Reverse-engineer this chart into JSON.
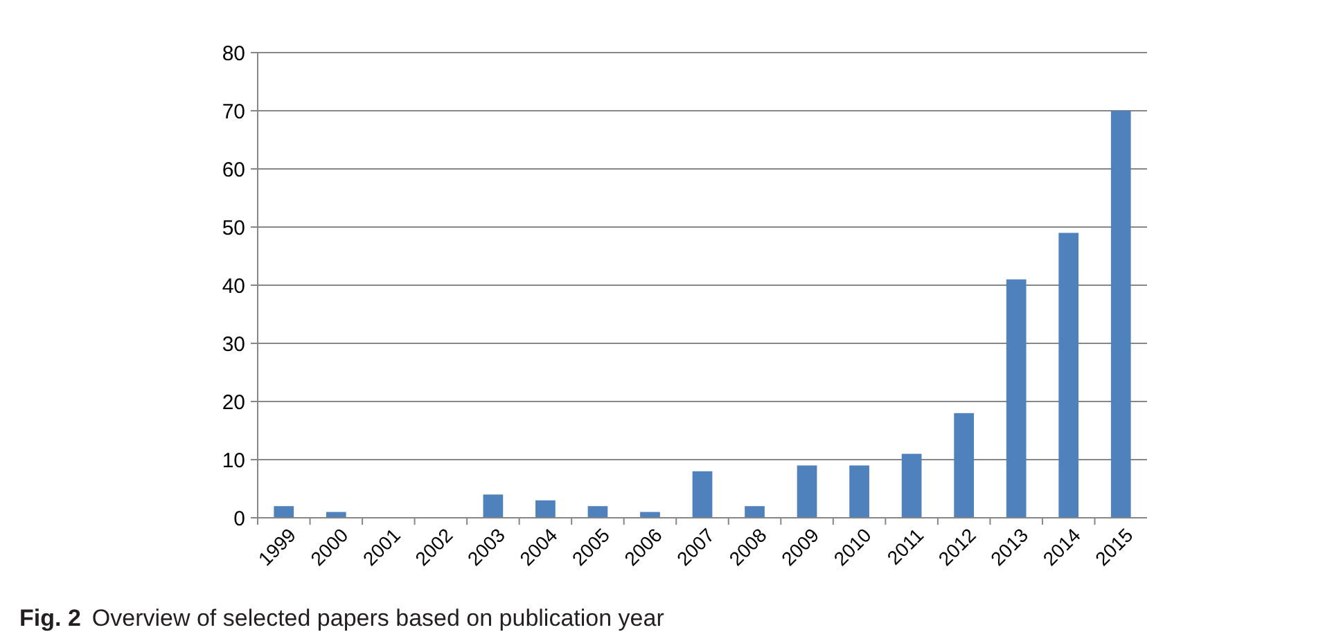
{
  "chart_data": {
    "type": "bar",
    "categories": [
      "1999",
      "2000",
      "2001",
      "2002",
      "2003",
      "2004",
      "2005",
      "2006",
      "2007",
      "2008",
      "2009",
      "2010",
      "2011",
      "2012",
      "2013",
      "2014",
      "2015"
    ],
    "values": [
      2,
      1,
      0,
      0,
      4,
      3,
      2,
      1,
      8,
      2,
      9,
      9,
      11,
      18,
      41,
      49,
      70
    ],
    "color": "#4f81bd",
    "ylim": [
      0,
      80
    ],
    "yticks": [
      0,
      10,
      20,
      30,
      40,
      50,
      60,
      70,
      80
    ],
    "grid": "y",
    "annotations": [
      "Fig. 2",
      "Overview of selected papers based on publication year"
    ]
  }
}
